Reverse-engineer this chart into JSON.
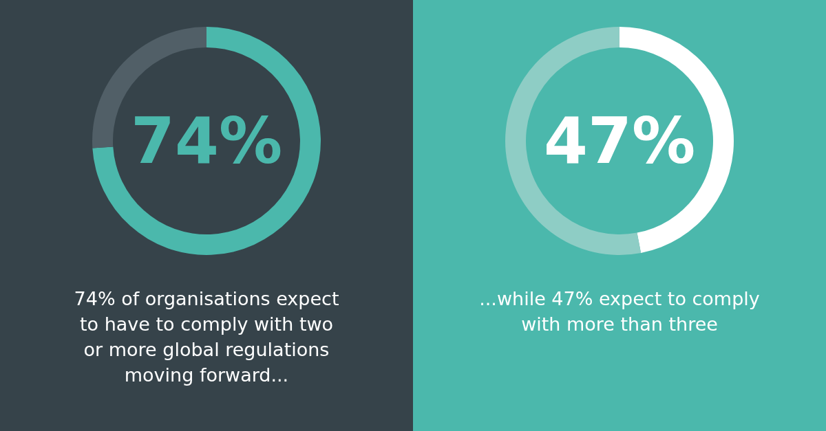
{
  "chart_data": [
    {
      "type": "donut",
      "categories": [
        null,
        null
      ],
      "values": [
        74,
        26
      ],
      "colors": [
        "#4bb8ac",
        "#515f67"
      ],
      "value_labels": [
        "74%",
        null
      ],
      "annotations": [
        "74% of organisations expect",
        "to have to comply with two",
        "or more global regulations",
        "moving forward..."
      ]
    },
    {
      "type": "donut",
      "categories": [
        null,
        null
      ],
      "values": [
        47,
        53
      ],
      "colors": [
        "#ffffff",
        "#8ecdc5"
      ],
      "value_labels": [
        "47%",
        null
      ],
      "annotations": [
        "...while 47% expect to comply",
        "with more than three"
      ]
    }
  ]
}
